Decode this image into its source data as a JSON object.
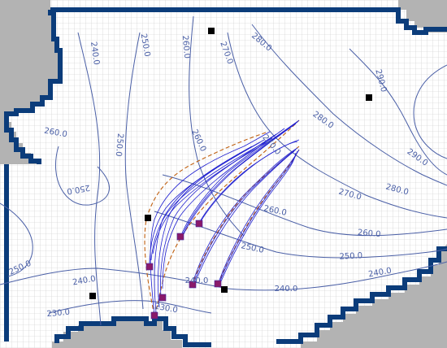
{
  "map": {
    "title": "",
    "colors": {
      "background": "#ffffff",
      "grid": "#c8c8c8",
      "inactive_cells": "#b3b3b3",
      "boundary": "#0b3c7a",
      "contour": "#4a5fa6",
      "pathline": "#2020d0",
      "envelope": "#c06010",
      "particle": "#8a1a6a",
      "well": "#000000"
    },
    "contour_labels": [
      {
        "id": "c240-nw",
        "text": "240.0",
        "angle": 82
      },
      {
        "id": "c250-n",
        "text": "250.0",
        "angle": 80
      },
      {
        "id": "c260-n",
        "text": "260.0",
        "angle": 85
      },
      {
        "id": "c270-n",
        "text": "270.0",
        "angle": 70
      },
      {
        "id": "c280-n",
        "text": "280.0",
        "angle": 40
      },
      {
        "id": "c290-ne",
        "text": "290.0",
        "angle": 75
      },
      {
        "id": "c260-w",
        "text": "260.0",
        "angle": 10
      },
      {
        "id": "c250-wc",
        "text": "250.0",
        "angle": 95
      },
      {
        "id": "c250-w",
        "text": "250.0",
        "angle": 170
      },
      {
        "id": "c260-m",
        "text": "260.0",
        "angle": 65
      },
      {
        "id": "c270-m",
        "text": "270.0",
        "angle": 50
      },
      {
        "id": "c280-e",
        "text": "280.0",
        "angle": 35
      },
      {
        "id": "c290-e",
        "text": "290.0",
        "angle": 35
      },
      {
        "id": "c270-e",
        "text": "270.0",
        "angle": 15
      },
      {
        "id": "c280-e2",
        "text": "280.0",
        "angle": 15
      },
      {
        "id": "c260-c",
        "text": "260.0",
        "angle": 12
      },
      {
        "id": "c260-e",
        "text": "260.0",
        "angle": 5
      },
      {
        "id": "c250-c",
        "text": "250.0",
        "angle": 12
      },
      {
        "id": "c250-e",
        "text": "250.0",
        "angle": -3
      },
      {
        "id": "c250-sw",
        "text": "250.0",
        "angle": -25
      },
      {
        "id": "c240-w",
        "text": "240.0",
        "angle": -10
      },
      {
        "id": "c240-c",
        "text": "240.0",
        "angle": 0
      },
      {
        "id": "c240-s",
        "text": "240.0",
        "angle": 0
      },
      {
        "id": "c240-e",
        "text": "240.0",
        "angle": -10
      },
      {
        "id": "c230-sw",
        "text": "230.0",
        "angle": -5
      },
      {
        "id": "c230-s",
        "text": "230.0",
        "angle": 10
      }
    ]
  }
}
